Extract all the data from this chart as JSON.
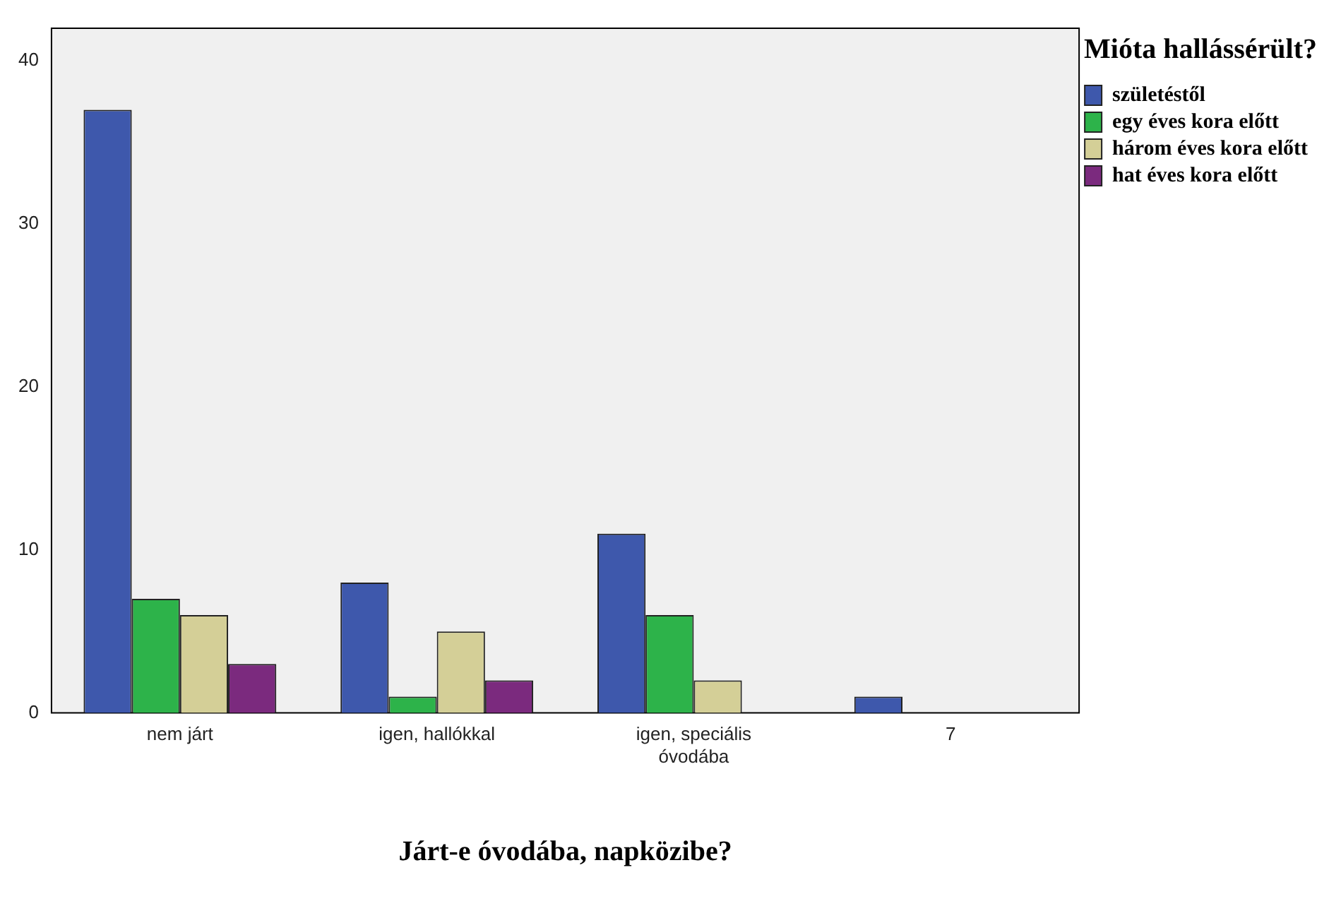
{
  "chart_data": {
    "type": "bar",
    "xlabel": "Járt-e óvodába, napközibe?",
    "legend_title": "Mióta hallássérült?",
    "legend": "top right",
    "grid": false,
    "categories": [
      "nem járt",
      "igen, hallókkal",
      "igen, speciális óvodába",
      "7"
    ],
    "ylim": [
      0,
      42
    ],
    "yticks": [
      0,
      10,
      20,
      30,
      40
    ],
    "series": [
      {
        "name": "születéstől",
        "color": "#3e58ac",
        "values": [
          37,
          8,
          11,
          1
        ]
      },
      {
        "name": "egy éves kora előtt",
        "color": "#2db34a",
        "values": [
          7,
          1,
          6,
          null
        ]
      },
      {
        "name": "három éves kora előtt",
        "color": "#d4cf97",
        "values": [
          6,
          5,
          2,
          null
        ]
      },
      {
        "name": "hat éves kora előtt",
        "color": "#7b2a7e",
        "values": [
          3,
          2,
          null,
          null
        ]
      }
    ]
  }
}
